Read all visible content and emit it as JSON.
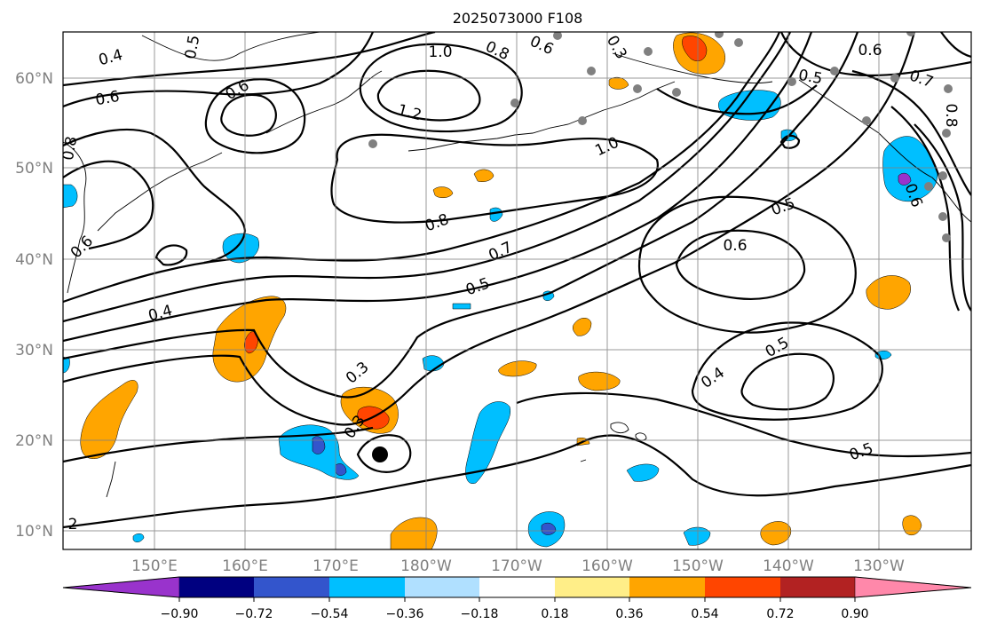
{
  "title": "2025073000 F108",
  "map": {
    "lat_ticks": [
      "60°N",
      "50°N",
      "40°N",
      "30°N",
      "20°N",
      "10°N"
    ],
    "lon_ticks": [
      "150°E",
      "160°E",
      "170°E",
      "180°W",
      "170°W",
      "160°W",
      "150°W",
      "140°W",
      "130°W"
    ],
    "contour_labels": [
      "0.4",
      "0.5",
      "0.6",
      "0.6",
      "1.0",
      "0.8",
      "0.6",
      "0.3",
      "0.6",
      "0.7",
      "0.5",
      "0.8",
      "1.2",
      "1.0",
      "0.8",
      "0.6",
      "0.5",
      "0.7",
      "0.5",
      "0.6",
      "0.4",
      "0.8",
      "0.6",
      "0.3",
      "0.3",
      "0.4",
      "0.5",
      "0.5",
      "2"
    ],
    "storm_marker": "black-dot"
  },
  "colorbar": {
    "ticks": [
      "−0.90",
      "−0.72",
      "−0.54",
      "−0.36",
      "−0.18",
      "0.18",
      "0.36",
      "0.54",
      "0.72",
      "0.90"
    ],
    "colors": [
      "#9933cc",
      "#000080",
      "#3355cc",
      "#00bfff",
      "#b0e0ff",
      "#ffffff",
      "#ffee88",
      "#ffa500",
      "#ff4500",
      "#b22222",
      "#ff88aa"
    ]
  },
  "fill_colors": {
    "cyan": "#00bfff",
    "blue": "#3355cc",
    "purple": "#9933cc",
    "orange": "#ffa500",
    "red": "#ff4500",
    "yellow": "#ffee88"
  }
}
